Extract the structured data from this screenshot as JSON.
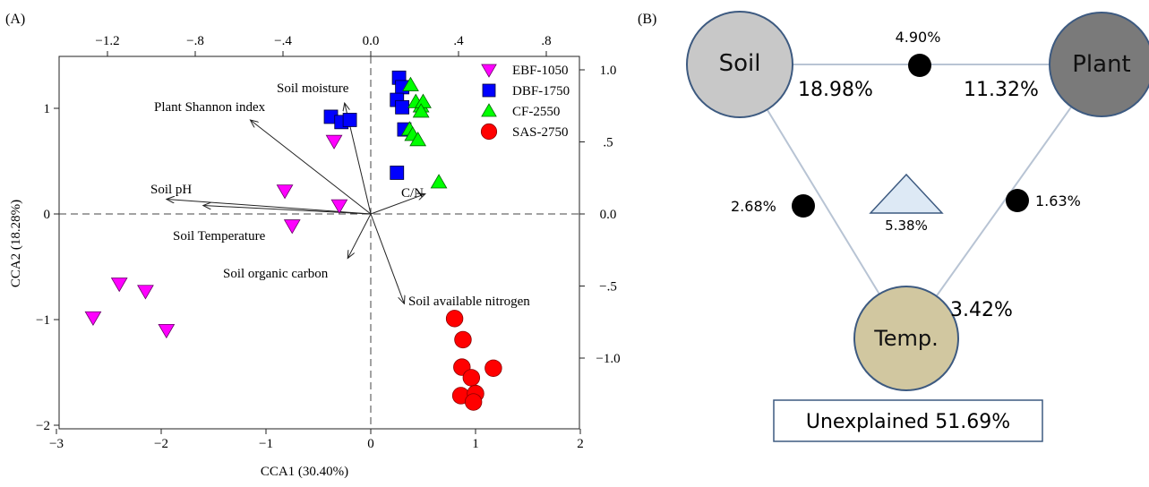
{
  "panel_a": {
    "label": "(A)",
    "chart_data": {
      "type": "scatter",
      "title": "",
      "xlabel": "CCA1 (30.40%)",
      "ylabel": "CCA2 (18.28%)",
      "xlim": [
        -3,
        2
      ],
      "ylim": [
        -2,
        1.6
      ],
      "xticks": [
        -3,
        -2,
        -1,
        0,
        1,
        2
      ],
      "xtick_labels": [
        "−3",
        "−2",
        "−1",
        "0",
        "1",
        "2"
      ],
      "yticks": [
        -2,
        -1,
        0,
        1
      ],
      "ytick_labels": [
        "−2",
        "−1",
        "0",
        "1"
      ],
      "top_axis": {
        "ticks": [
          -1.2,
          -0.8,
          -0.4,
          0.0,
          0.4,
          0.8
        ],
        "tick_labels": [
          "−1.2",
          "−.8",
          "−.4",
          "0.0",
          ".4",
          ".8"
        ]
      },
      "right_axis": {
        "ticks": [
          1.0,
          0.5,
          0.0,
          -0.5,
          -1.0
        ],
        "tick_labels": [
          "1.0",
          ".5",
          "0.0",
          "−.5",
          "−1.0"
        ]
      },
      "legend_position": "top-right",
      "grid": false,
      "series": [
        {
          "name": "EBF-1050",
          "marker": "triangle-down",
          "color": "#ff00ff",
          "points": [
            [
              -2.65,
              -0.98
            ],
            [
              -2.4,
              -0.66
            ],
            [
              -2.15,
              -0.73
            ],
            [
              -1.95,
              -1.1
            ],
            [
              -0.82,
              0.22
            ],
            [
              -0.35,
              0.69
            ],
            [
              -0.75,
              -0.11
            ],
            [
              -0.3,
              0.08
            ]
          ]
        },
        {
          "name": "DBF-1750",
          "marker": "square",
          "color": "#0000ff",
          "points": [
            [
              0.27,
              1.29
            ],
            [
              0.3,
              1.2
            ],
            [
              0.25,
              1.08
            ],
            [
              0.3,
              1.01
            ],
            [
              0.32,
              0.8
            ],
            [
              -0.38,
              0.92
            ],
            [
              -0.28,
              0.87
            ],
            [
              -0.2,
              0.89
            ],
            [
              0.25,
              0.39
            ]
          ]
        },
        {
          "name": "CF-2550",
          "marker": "triangle-up",
          "color": "#00ff00",
          "points": [
            [
              0.38,
              1.22
            ],
            [
              0.43,
              1.06
            ],
            [
              0.48,
              1.02
            ],
            [
              0.5,
              1.06
            ],
            [
              0.48,
              0.97
            ],
            [
              0.37,
              0.8
            ],
            [
              0.4,
              0.75
            ],
            [
              0.45,
              0.7
            ],
            [
              0.65,
              0.3
            ]
          ]
        },
        {
          "name": "SAS-2750",
          "marker": "circle",
          "color": "#ff0000",
          "points": [
            [
              0.8,
              -0.99
            ],
            [
              0.88,
              -1.19
            ],
            [
              0.87,
              -1.45
            ],
            [
              0.96,
              -1.55
            ],
            [
              1.17,
              -1.46
            ],
            [
              0.86,
              -1.72
            ],
            [
              1.0,
              -1.7
            ],
            [
              0.98,
              -1.78
            ]
          ]
        }
      ],
      "vectors": [
        {
          "label": "Soil moisture",
          "end": [
            -0.25,
            1.05
          ]
        },
        {
          "label": "Plant Shannon index",
          "end": [
            -1.15,
            0.89
          ]
        },
        {
          "label": "Soil pH",
          "end": [
            -1.95,
            0.14
          ]
        },
        {
          "label": "Soil Temperature",
          "end": [
            -1.6,
            0.08
          ]
        },
        {
          "label": "Soil organic carbon",
          "end": [
            -0.22,
            -0.42
          ]
        },
        {
          "label": "Soil available nitrogen",
          "end": [
            0.32,
            -0.85
          ]
        },
        {
          "label": "C/N",
          "end": [
            0.52,
            0.19
          ]
        }
      ]
    }
  },
  "panel_b": {
    "label": "(B)",
    "nodes": {
      "soil": "Soil",
      "plant": "Plant",
      "temp": "Temp."
    },
    "values": {
      "soil_only": "18.98%",
      "plant_only": "11.32%",
      "temp_only": "3.42%",
      "soil_plant": "4.90%",
      "soil_temp": "2.68%",
      "plant_temp": "1.63%",
      "all_three": "5.38%"
    },
    "unexplained": "Unexplained 51.69%",
    "colors": {
      "soil": "#c8c8c8",
      "plant": "#7a7a7a",
      "temp": "#d1c7a0",
      "triangle": "#dde9f5",
      "stroke": "#3d5a80",
      "line": "#b8c4d4"
    }
  }
}
